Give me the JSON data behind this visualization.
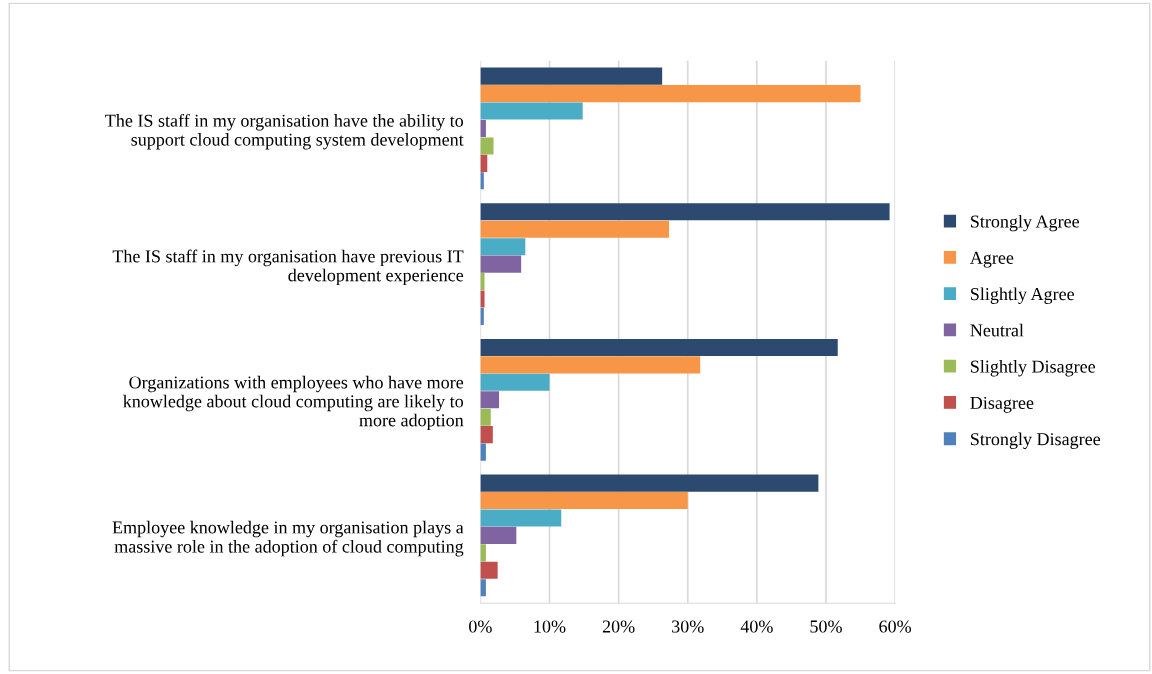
{
  "chart_data": {
    "type": "bar",
    "orientation": "horizontal",
    "categories": [
      "The IS staff in my organisation have the ability to\nsupport cloud computing system development",
      "The IS staff in my organisation have previous IT\ndevelopment experience",
      "Organizations with employees who have more\nknowledge about cloud computing are likely to\nmore adoption",
      "Employee knowledge in my organisation plays a\nmassive role in the adoption of cloud computing"
    ],
    "series": [
      {
        "name": "Strongly Agree",
        "color": "#2c4a70",
        "values": [
          26.3,
          59.2,
          51.7,
          48.9
        ]
      },
      {
        "name": "Agree",
        "color": "#f79646",
        "values": [
          55.0,
          27.3,
          31.8,
          30.0
        ]
      },
      {
        "name": "Slightly Agree",
        "color": "#4bacc6",
        "values": [
          14.8,
          6.5,
          10.0,
          11.7
        ]
      },
      {
        "name": "Neutral",
        "color": "#8064a2",
        "values": [
          0.8,
          5.9,
          2.7,
          5.2
        ]
      },
      {
        "name": "Slightly Disagree",
        "color": "#9bbb59",
        "values": [
          1.9,
          0.6,
          1.5,
          0.8
        ]
      },
      {
        "name": "Disagree",
        "color": "#c0504d",
        "values": [
          1.0,
          0.6,
          1.8,
          2.5
        ]
      },
      {
        "name": "Strongly Disagree",
        "color": "#4f81bd",
        "values": [
          0.5,
          0.5,
          0.8,
          0.8
        ]
      }
    ],
    "xlim": [
      0,
      60
    ],
    "xticks": [
      {
        "value": 0,
        "label": "0%"
      },
      {
        "value": 10,
        "label": "10%"
      },
      {
        "value": 20,
        "label": "20%"
      },
      {
        "value": 30,
        "label": "30%"
      },
      {
        "value": 40,
        "label": "40%"
      },
      {
        "value": 50,
        "label": "50%"
      },
      {
        "value": 60,
        "label": "60%"
      }
    ],
    "grid": "x",
    "legend": "right"
  }
}
